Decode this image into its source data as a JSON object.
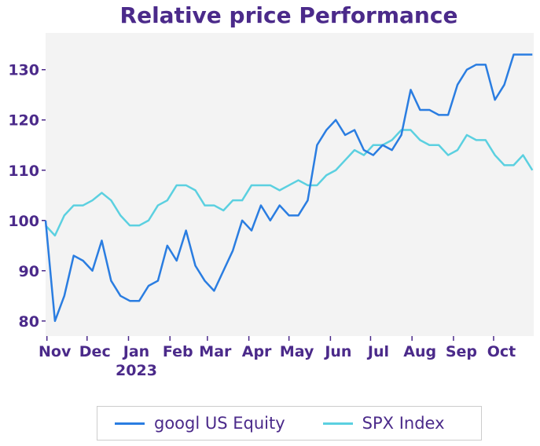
{
  "chart_data": {
    "type": "line",
    "title": "Relative price Performance",
    "xlabel": "",
    "ylabel": "",
    "ylim": [
      77,
      137.3
    ],
    "xlim": [
      "2022-10-31",
      "2023-10-31"
    ],
    "yticks": [
      80,
      90,
      100,
      110,
      120,
      130
    ],
    "xticks": [
      {
        "date": "2022-11-01",
        "label": "Nov"
      },
      {
        "date": "2022-12-01",
        "label": "Dec"
      },
      {
        "date": "2023-01-01",
        "label": "Jan",
        "sublabel": "2023"
      },
      {
        "date": "2023-02-01",
        "label": "Feb"
      },
      {
        "date": "2023-03-01",
        "label": "Mar"
      },
      {
        "date": "2023-04-01",
        "label": "Apr"
      },
      {
        "date": "2023-05-01",
        "label": "May"
      },
      {
        "date": "2023-06-01",
        "label": "Jun"
      },
      {
        "date": "2023-07-01",
        "label": "Jul"
      },
      {
        "date": "2023-08-01",
        "label": "Aug"
      },
      {
        "date": "2023-09-01",
        "label": "Sep"
      },
      {
        "date": "2023-10-01",
        "label": "Oct"
      }
    ],
    "x_start": "2022-10-31",
    "x_step_days": 7,
    "grid": false,
    "legend_position": "bottom",
    "series": [
      {
        "name": "googl US Equity",
        "color": "#2a7de1",
        "values": [
          100,
          80,
          85,
          93,
          92,
          90,
          96,
          88,
          85,
          84,
          84,
          87,
          88,
          95,
          92,
          98,
          91,
          88,
          86,
          90,
          94,
          100,
          98,
          103,
          100,
          103,
          101,
          101,
          104,
          115,
          118,
          120,
          117,
          118,
          114,
          113,
          115,
          114,
          117,
          126,
          122,
          122,
          121,
          121,
          127,
          130,
          131,
          131,
          124,
          127,
          133,
          133,
          133
        ]
      },
      {
        "name": "SPX Index",
        "color": "#5bd0e0",
        "values": [
          99,
          97,
          101,
          103,
          103,
          104,
          105.5,
          104,
          101,
          99,
          99,
          100,
          103,
          104,
          107,
          107,
          106,
          103,
          103,
          102,
          104,
          104,
          107,
          107,
          107,
          106,
          107,
          108,
          107,
          107,
          109,
          110,
          112,
          114,
          113,
          115,
          115,
          116,
          118,
          118,
          116,
          115,
          115,
          113,
          114,
          117,
          116,
          116,
          113,
          111,
          111,
          113,
          110
        ]
      }
    ]
  }
}
